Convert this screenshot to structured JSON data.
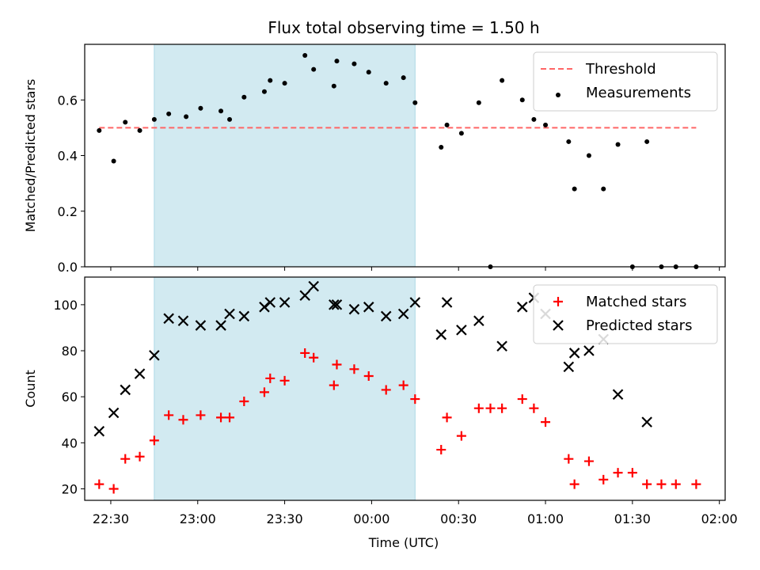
{
  "figure_title": "Flux total observing time = 1.50 h",
  "x_label": "Time (UTC)",
  "x_tick_labels": [
    "22:30",
    "23:00",
    "23:30",
    "00:00",
    "00:30",
    "01:00",
    "01:30",
    "02:00"
  ],
  "colors": {
    "highlight_span": "#add8e6",
    "threshold": "#ff6666",
    "measurements": "#000000",
    "matched": "#ff0000",
    "predicted": "#000000"
  },
  "chart_data": [
    {
      "type": "scatter",
      "ylabel": "Matched/Predicted stars",
      "ylim": [
        0,
        0.8
      ],
      "y_ticks": [
        0.0,
        0.2,
        0.4,
        0.6
      ],
      "y_tick_labels": [
        "0.0",
        "0.2",
        "0.4",
        "0.6"
      ],
      "xlim": [
        "22:21",
        "02:02"
      ],
      "legend_position": "top-right",
      "highlight_span": {
        "from": "22:45",
        "to": "00:15"
      },
      "threshold": {
        "name": "Threshold",
        "y": 0.5,
        "x_from": "22:26",
        "x_to": "01:52"
      },
      "series": [
        {
          "name": "Measurements",
          "marker": "dot",
          "points": [
            [
              "22:26",
              0.49
            ],
            [
              "22:31",
              0.38
            ],
            [
              "22:35",
              0.52
            ],
            [
              "22:40",
              0.49
            ],
            [
              "22:45",
              0.53
            ],
            [
              "22:50",
              0.55
            ],
            [
              "22:56",
              0.54
            ],
            [
              "23:01",
              0.57
            ],
            [
              "23:08",
              0.56
            ],
            [
              "23:11",
              0.53
            ],
            [
              "23:16",
              0.61
            ],
            [
              "23:23",
              0.63
            ],
            [
              "23:25",
              0.67
            ],
            [
              "23:30",
              0.66
            ],
            [
              "23:37",
              0.76
            ],
            [
              "23:40",
              0.71
            ],
            [
              "23:47",
              0.65
            ],
            [
              "23:48",
              0.74
            ],
            [
              "23:54",
              0.73
            ],
            [
              "23:59",
              0.7
            ],
            [
              "00:05",
              0.66
            ],
            [
              "00:11",
              0.68
            ],
            [
              "00:15",
              0.59
            ],
            [
              "00:24",
              0.43
            ],
            [
              "00:26",
              0.51
            ],
            [
              "00:31",
              0.48
            ],
            [
              "00:37",
              0.59
            ],
            [
              "00:41",
              0.0
            ],
            [
              "00:45",
              0.67
            ],
            [
              "00:52",
              0.6
            ],
            [
              "00:56",
              0.53
            ],
            [
              "01:00",
              0.51
            ],
            [
              "01:08",
              0.45
            ],
            [
              "01:10",
              0.28
            ],
            [
              "01:15",
              0.4
            ],
            [
              "01:20",
              0.28
            ],
            [
              "01:25",
              0.44
            ],
            [
              "01:30",
              0.0
            ],
            [
              "01:35",
              0.45
            ],
            [
              "01:40",
              0.0
            ],
            [
              "01:45",
              0.0
            ],
            [
              "01:52",
              0.0
            ]
          ]
        }
      ]
    },
    {
      "type": "scatter",
      "ylabel": "Count",
      "ylim": [
        15,
        112
      ],
      "y_ticks": [
        20,
        40,
        60,
        80,
        100
      ],
      "y_tick_labels": [
        "20",
        "40",
        "60",
        "80",
        "100"
      ],
      "xlim": [
        "22:21",
        "02:02"
      ],
      "legend_position": "top-right",
      "highlight_span": {
        "from": "22:45",
        "to": "00:15"
      },
      "series": [
        {
          "name": "Matched stars",
          "marker": "plus",
          "points": [
            [
              "22:26",
              22
            ],
            [
              "22:31",
              20
            ],
            [
              "22:35",
              33
            ],
            [
              "22:40",
              34
            ],
            [
              "22:45",
              41
            ],
            [
              "22:50",
              52
            ],
            [
              "22:55",
              50
            ],
            [
              "23:01",
              52
            ],
            [
              "23:08",
              51
            ],
            [
              "23:11",
              51
            ],
            [
              "23:16",
              58
            ],
            [
              "23:23",
              62
            ],
            [
              "23:25",
              68
            ],
            [
              "23:30",
              67
            ],
            [
              "23:37",
              79
            ],
            [
              "23:40",
              77
            ],
            [
              "23:47",
              65
            ],
            [
              "23:48",
              74
            ],
            [
              "23:54",
              72
            ],
            [
              "23:59",
              69
            ],
            [
              "00:05",
              63
            ],
            [
              "00:11",
              65
            ],
            [
              "00:15",
              59
            ],
            [
              "00:24",
              37
            ],
            [
              "00:26",
              51
            ],
            [
              "00:31",
              43
            ],
            [
              "00:37",
              55
            ],
            [
              "00:41",
              55
            ],
            [
              "00:45",
              55
            ],
            [
              "00:52",
              59
            ],
            [
              "00:56",
              55
            ],
            [
              "01:00",
              49
            ],
            [
              "01:08",
              33
            ],
            [
              "01:10",
              22
            ],
            [
              "01:15",
              32
            ],
            [
              "01:20",
              24
            ],
            [
              "01:25",
              27
            ],
            [
              "01:30",
              27
            ],
            [
              "01:35",
              22
            ],
            [
              "01:40",
              22
            ],
            [
              "01:45",
              22
            ],
            [
              "01:52",
              22
            ]
          ]
        },
        {
          "name": "Predicted stars",
          "marker": "x",
          "points": [
            [
              "22:26",
              45
            ],
            [
              "22:31",
              53
            ],
            [
              "22:35",
              63
            ],
            [
              "22:40",
              70
            ],
            [
              "22:45",
              78
            ],
            [
              "22:50",
              94
            ],
            [
              "22:55",
              93
            ],
            [
              "23:01",
              91
            ],
            [
              "23:08",
              91
            ],
            [
              "23:11",
              96
            ],
            [
              "23:16",
              95
            ],
            [
              "23:23",
              99
            ],
            [
              "23:25",
              101
            ],
            [
              "23:30",
              101
            ],
            [
              "23:37",
              104
            ],
            [
              "23:40",
              108
            ],
            [
              "23:47",
              100
            ],
            [
              "23:48",
              100
            ],
            [
              "23:54",
              98
            ],
            [
              "23:59",
              99
            ],
            [
              "00:05",
              95
            ],
            [
              "00:11",
              96
            ],
            [
              "00:15",
              101
            ],
            [
              "00:24",
              87
            ],
            [
              "00:26",
              101
            ],
            [
              "00:31",
              89
            ],
            [
              "00:37",
              93
            ],
            [
              "00:45",
              82
            ],
            [
              "00:52",
              99
            ],
            [
              "00:56",
              103
            ],
            [
              "01:00",
              96
            ],
            [
              "01:08",
              73
            ],
            [
              "01:10",
              79
            ],
            [
              "01:15",
              80
            ],
            [
              "01:20",
              85
            ],
            [
              "01:25",
              61
            ],
            [
              "01:35",
              49
            ]
          ]
        }
      ]
    }
  ]
}
